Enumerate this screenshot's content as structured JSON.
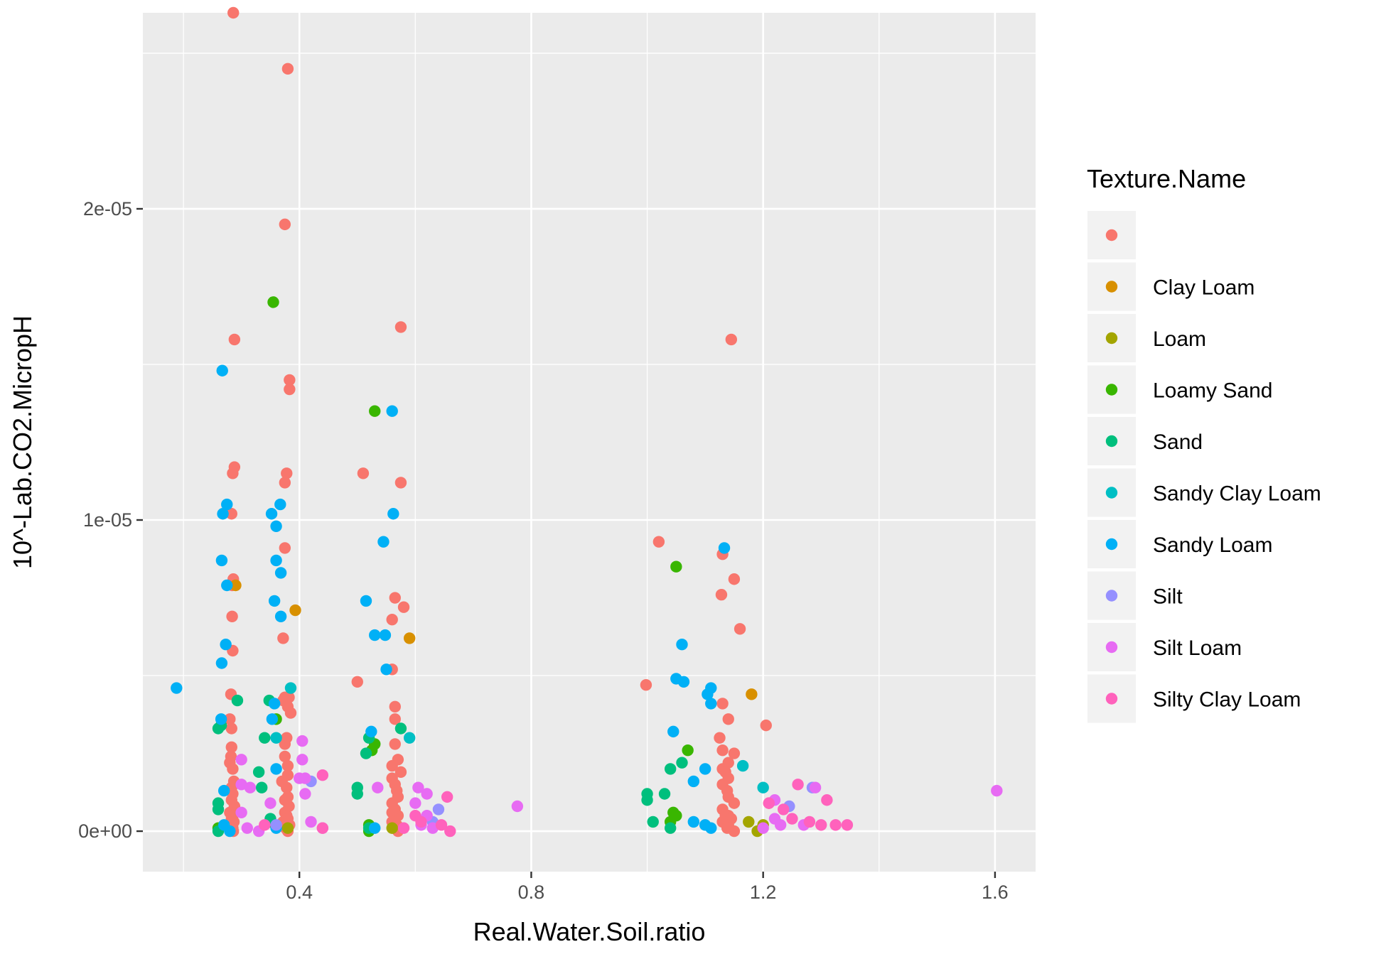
{
  "chart_data": {
    "type": "scatter",
    "title": "",
    "xlabel": "Real.Water.Soil.ratio",
    "ylabel": "10^-Lab.CO2.MicropH",
    "xlim": [
      0.13,
      1.67
    ],
    "ylim": [
      -1.3e-06,
      2.63e-05
    ],
    "x_ticks": [
      0.4,
      0.8,
      1.2,
      1.6
    ],
    "x_tick_labels": [
      "0.4",
      "0.8",
      "1.2",
      "1.6"
    ],
    "y_ticks": [
      0,
      1e-05,
      2e-05
    ],
    "y_tick_labels": [
      "0e+00",
      "1e-05",
      "2e-05"
    ],
    "grid": true,
    "legend": {
      "title": "Texture.Name",
      "position": "right"
    },
    "series": [
      {
        "name": "",
        "color": "#F8766D",
        "points": [
          [
            0.286,
            2.63e-05
          ],
          [
            0.38,
            2.45e-05
          ],
          [
            0.375,
            1.95e-05
          ],
          [
            0.575,
            1.62e-05
          ],
          [
            1.145,
            1.58e-05
          ],
          [
            0.288,
            1.58e-05
          ],
          [
            0.383,
            1.45e-05
          ],
          [
            0.383,
            1.42e-05
          ],
          [
            0.288,
            1.17e-05
          ],
          [
            0.285,
            1.15e-05
          ],
          [
            0.378,
            1.15e-05
          ],
          [
            0.375,
            1.12e-05
          ],
          [
            0.51,
            1.15e-05
          ],
          [
            0.575,
            1.12e-05
          ],
          [
            0.283,
            1.02e-05
          ],
          [
            1.02,
            9.3e-06
          ],
          [
            0.375,
            9.1e-06
          ],
          [
            1.13,
            8.9e-06
          ],
          [
            1.15,
            8.1e-06
          ],
          [
            0.286,
            8.1e-06
          ],
          [
            0.284,
            7.9e-06
          ],
          [
            0.565,
            7.5e-06
          ],
          [
            1.128,
            7.6e-06
          ],
          [
            0.58,
            7.2e-06
          ],
          [
            0.284,
            6.9e-06
          ],
          [
            0.56,
            6.8e-06
          ],
          [
            1.16,
            6.5e-06
          ],
          [
            0.372,
            6.2e-06
          ],
          [
            0.285,
            5.8e-06
          ],
          [
            0.56,
            5.2e-06
          ],
          [
            0.5,
            4.8e-06
          ],
          [
            0.998,
            4.7e-06
          ],
          [
            0.282,
            4.4e-06
          ],
          [
            0.375,
            4.3e-06
          ],
          [
            0.382,
            4.3e-06
          ],
          [
            0.372,
            4.2e-06
          ],
          [
            0.38,
            4e-06
          ],
          [
            1.13,
            4.1e-06
          ],
          [
            0.565,
            4e-06
          ],
          [
            0.385,
            3.8e-06
          ],
          [
            1.14,
            3.6e-06
          ],
          [
            0.28,
            3.6e-06
          ],
          [
            0.565,
            3.6e-06
          ],
          [
            1.205,
            3.4e-06
          ],
          [
            0.283,
            3.3e-06
          ],
          [
            1.125,
            3e-06
          ],
          [
            0.378,
            3e-06
          ],
          [
            0.375,
            2.8e-06
          ],
          [
            0.283,
            2.7e-06
          ],
          [
            0.565,
            2.8e-06
          ],
          [
            1.13,
            2.6e-06
          ],
          [
            1.15,
            2.5e-06
          ],
          [
            0.282,
            2.4e-06
          ],
          [
            0.375,
            2.4e-06
          ],
          [
            0.57,
            2.3e-06
          ],
          [
            1.14,
            2.2e-06
          ],
          [
            0.28,
            2.2e-06
          ],
          [
            0.38,
            2.1e-06
          ],
          [
            0.56,
            2.1e-06
          ],
          [
            1.13,
            2e-06
          ],
          [
            0.285,
            2e-06
          ],
          [
            0.575,
            1.9e-06
          ],
          [
            1.135,
            1.9e-06
          ],
          [
            0.38,
            1.8e-06
          ],
          [
            0.56,
            1.7e-06
          ],
          [
            1.14,
            1.7e-06
          ],
          [
            0.287,
            1.6e-06
          ],
          [
            0.37,
            1.6e-06
          ],
          [
            0.565,
            1.5e-06
          ],
          [
            1.13,
            1.5e-06
          ],
          [
            0.283,
            1.4e-06
          ],
          [
            0.378,
            1.4e-06
          ],
          [
            0.568,
            1.3e-06
          ],
          [
            1.138,
            1.3e-06
          ],
          [
            0.285,
            1.2e-06
          ],
          [
            0.38,
            1.1e-06
          ],
          [
            0.57,
            1.1e-06
          ],
          [
            1.14,
            1.1e-06
          ],
          [
            0.283,
            1e-06
          ],
          [
            0.375,
            1e-06
          ],
          [
            0.56,
            9e-07
          ],
          [
            1.15,
            9e-07
          ],
          [
            1.21,
            9e-07
          ],
          [
            0.288,
            8e-07
          ],
          [
            0.382,
            8e-07
          ],
          [
            0.565,
            7e-07
          ],
          [
            1.13,
            7e-07
          ],
          [
            0.28,
            6e-07
          ],
          [
            0.375,
            6e-07
          ],
          [
            0.56,
            6e-07
          ],
          [
            1.14,
            5e-07
          ],
          [
            0.285,
            5e-07
          ],
          [
            0.378,
            5e-07
          ],
          [
            0.57,
            5e-07
          ],
          [
            1.135,
            5e-07
          ],
          [
            0.283,
            4e-07
          ],
          [
            0.38,
            4e-07
          ],
          [
            0.565,
            4e-07
          ],
          [
            1.145,
            4e-07
          ],
          [
            0.287,
            3e-07
          ],
          [
            0.372,
            3e-07
          ],
          [
            0.56,
            3e-07
          ],
          [
            1.13,
            3e-07
          ],
          [
            0.28,
            2e-07
          ],
          [
            0.383,
            2e-07
          ],
          [
            0.568,
            2e-07
          ],
          [
            1.14,
            2e-07
          ],
          [
            0.285,
            1e-07
          ],
          [
            0.376,
            1e-07
          ],
          [
            0.562,
            1e-07
          ],
          [
            1.138,
            1e-07
          ],
          [
            0.286,
            0.0
          ],
          [
            0.38,
            0.0
          ],
          [
            0.57,
            0.0
          ],
          [
            1.15,
            0.0
          ]
        ]
      },
      {
        "name": "Clay Loam",
        "color": "#D89000",
        "points": [
          [
            0.29,
            7.9e-06
          ],
          [
            0.393,
            7.1e-06
          ],
          [
            0.59,
            6.2e-06
          ],
          [
            1.18,
            4.4e-06
          ]
        ]
      },
      {
        "name": "Loam",
        "color": "#A3A500",
        "points": [
          [
            1.19,
            0.0
          ],
          [
            1.2,
            2e-07
          ],
          [
            0.56,
            1e-07
          ],
          [
            0.38,
            1e-07
          ],
          [
            1.175,
            3e-07
          ]
        ]
      },
      {
        "name": "Loamy Sand",
        "color": "#39B600",
        "points": [
          [
            0.355,
            1.7e-05
          ],
          [
            0.53,
            1.35e-05
          ],
          [
            1.05,
            8.5e-06
          ],
          [
            1.07,
            2.6e-06
          ],
          [
            0.53,
            2.8e-06
          ],
          [
            0.525,
            2.6e-06
          ],
          [
            0.36,
            3.6e-06
          ],
          [
            1.045,
            6e-07
          ],
          [
            1.05,
            5e-07
          ],
          [
            0.52,
            2e-07
          ],
          [
            0.35,
            3e-07
          ],
          [
            0.26,
            1e-07
          ],
          [
            1.04,
            3e-07
          ],
          [
            0.52,
            0.0
          ]
        ]
      },
      {
        "name": "Sand",
        "color": "#00BF7D",
        "points": [
          [
            0.293,
            4.2e-06
          ],
          [
            0.348,
            4.2e-06
          ],
          [
            0.26,
            3.3e-06
          ],
          [
            0.265,
            3.4e-06
          ],
          [
            0.34,
            3e-06
          ],
          [
            0.575,
            3.3e-06
          ],
          [
            0.52,
            3e-06
          ],
          [
            0.515,
            2.5e-06
          ],
          [
            0.33,
            1.9e-06
          ],
          [
            1.06,
            2.2e-06
          ],
          [
            1.04,
            2e-06
          ],
          [
            0.5,
            1.4e-06
          ],
          [
            0.335,
            1.4e-06
          ],
          [
            0.26,
            9e-07
          ],
          [
            0.26,
            7e-07
          ],
          [
            0.5,
            1.2e-06
          ],
          [
            1.0,
            1.2e-06
          ],
          [
            1.0,
            1e-06
          ],
          [
            1.03,
            1.2e-06
          ],
          [
            1.01,
            3e-07
          ],
          [
            0.35,
            4e-07
          ],
          [
            0.52,
            1e-07
          ],
          [
            0.26,
            0.0
          ],
          [
            1.04,
            1e-07
          ]
        ]
      },
      {
        "name": "Sandy Clay Loam",
        "color": "#00BFC4",
        "points": [
          [
            0.385,
            4.6e-06
          ],
          [
            0.59,
            3e-06
          ],
          [
            1.165,
            2.1e-06
          ],
          [
            1.2,
            1.4e-06
          ],
          [
            0.36,
            3e-06
          ]
        ]
      },
      {
        "name": "Sandy Loam",
        "color": "#00B0F6",
        "points": [
          [
            0.188,
            4.6e-06
          ],
          [
            0.267,
            1.48e-05
          ],
          [
            0.56,
            1.35e-05
          ],
          [
            0.275,
            1.05e-05
          ],
          [
            0.367,
            1.05e-05
          ],
          [
            0.268,
            1.02e-05
          ],
          [
            0.352,
            1.02e-05
          ],
          [
            0.562,
            1.02e-05
          ],
          [
            0.36,
            9.8e-06
          ],
          [
            0.545,
            9.3e-06
          ],
          [
            1.133,
            9.1e-06
          ],
          [
            0.266,
            8.7e-06
          ],
          [
            0.36,
            8.7e-06
          ],
          [
            0.368,
            8.3e-06
          ],
          [
            0.275,
            7.9e-06
          ],
          [
            0.357,
            7.4e-06
          ],
          [
            0.515,
            7.4e-06
          ],
          [
            0.368,
            6.9e-06
          ],
          [
            0.53,
            6.3e-06
          ],
          [
            0.548,
            6.3e-06
          ],
          [
            0.273,
            6e-06
          ],
          [
            1.06,
            6e-06
          ],
          [
            0.266,
            5.4e-06
          ],
          [
            0.55,
            5.2e-06
          ],
          [
            1.05,
            4.9e-06
          ],
          [
            1.063,
            4.8e-06
          ],
          [
            1.11,
            4.6e-06
          ],
          [
            1.104,
            4.4e-06
          ],
          [
            1.11,
            4.1e-06
          ],
          [
            0.357,
            4.1e-06
          ],
          [
            0.353,
            3.6e-06
          ],
          [
            0.265,
            3.6e-06
          ],
          [
            1.045,
            3.2e-06
          ],
          [
            0.524,
            3.2e-06
          ],
          [
            1.08,
            1.6e-06
          ],
          [
            0.36,
            2e-06
          ],
          [
            1.1,
            2e-06
          ],
          [
            0.27,
            1.3e-06
          ],
          [
            1.08,
            3e-07
          ],
          [
            1.1,
            2e-07
          ],
          [
            0.27,
            2e-07
          ],
          [
            0.36,
            1e-07
          ],
          [
            0.53,
            1e-07
          ],
          [
            1.11,
            1e-07
          ],
          [
            0.28,
            0.0
          ]
        ]
      },
      {
        "name": "Silt",
        "color": "#9590FF",
        "points": [
          [
            0.64,
            7e-07
          ],
          [
            1.245,
            8e-07
          ],
          [
            0.42,
            1.6e-06
          ],
          [
            1.285,
            1.4e-06
          ],
          [
            0.63,
            3e-07
          ],
          [
            0.36,
            2e-07
          ]
        ]
      },
      {
        "name": "Silt Loam",
        "color": "#E76BF3",
        "points": [
          [
            1.603,
            1.3e-06
          ],
          [
            0.776,
            8e-07
          ],
          [
            0.405,
            2.9e-06
          ],
          [
            0.405,
            2.3e-06
          ],
          [
            0.3,
            2.3e-06
          ],
          [
            0.4,
            1.7e-06
          ],
          [
            0.41,
            1.7e-06
          ],
          [
            0.3,
            1.5e-06
          ],
          [
            0.315,
            1.4e-06
          ],
          [
            0.41,
            1.2e-06
          ],
          [
            0.605,
            1.4e-06
          ],
          [
            0.62,
            1.2e-06
          ],
          [
            0.535,
            1.4e-06
          ],
          [
            1.29,
            1.4e-06
          ],
          [
            1.22,
            1e-06
          ],
          [
            0.6,
            9e-07
          ],
          [
            0.35,
            9e-07
          ],
          [
            0.3,
            6e-07
          ],
          [
            0.62,
            5e-07
          ],
          [
            1.22,
            4e-07
          ],
          [
            0.42,
            3e-07
          ],
          [
            0.31,
            1e-07
          ],
          [
            0.61,
            2e-07
          ],
          [
            1.23,
            2e-07
          ],
          [
            0.33,
            0.0
          ],
          [
            0.63,
            1e-07
          ],
          [
            1.27,
            2e-07
          ],
          [
            0.44,
            1e-07
          ],
          [
            1.2,
            1e-07
          ]
        ]
      },
      {
        "name": "Silty Clay Loam",
        "color": "#FF62BC",
        "points": [
          [
            0.44,
            1.8e-06
          ],
          [
            1.26,
            1.5e-06
          ],
          [
            0.655,
            1.1e-06
          ],
          [
            1.31,
            1e-06
          ],
          [
            1.21,
            9e-07
          ],
          [
            1.235,
            7e-07
          ],
          [
            0.6,
            5e-07
          ],
          [
            1.25,
            4e-07
          ],
          [
            0.61,
            3e-07
          ],
          [
            0.645,
            2e-07
          ],
          [
            1.3,
            2e-07
          ],
          [
            1.325,
            2e-07
          ],
          [
            1.345,
            2e-07
          ],
          [
            0.44,
            1e-07
          ],
          [
            0.66,
            0.0
          ],
          [
            1.28,
            3e-07
          ],
          [
            0.34,
            2e-07
          ],
          [
            0.58,
            1e-07
          ]
        ]
      }
    ]
  }
}
